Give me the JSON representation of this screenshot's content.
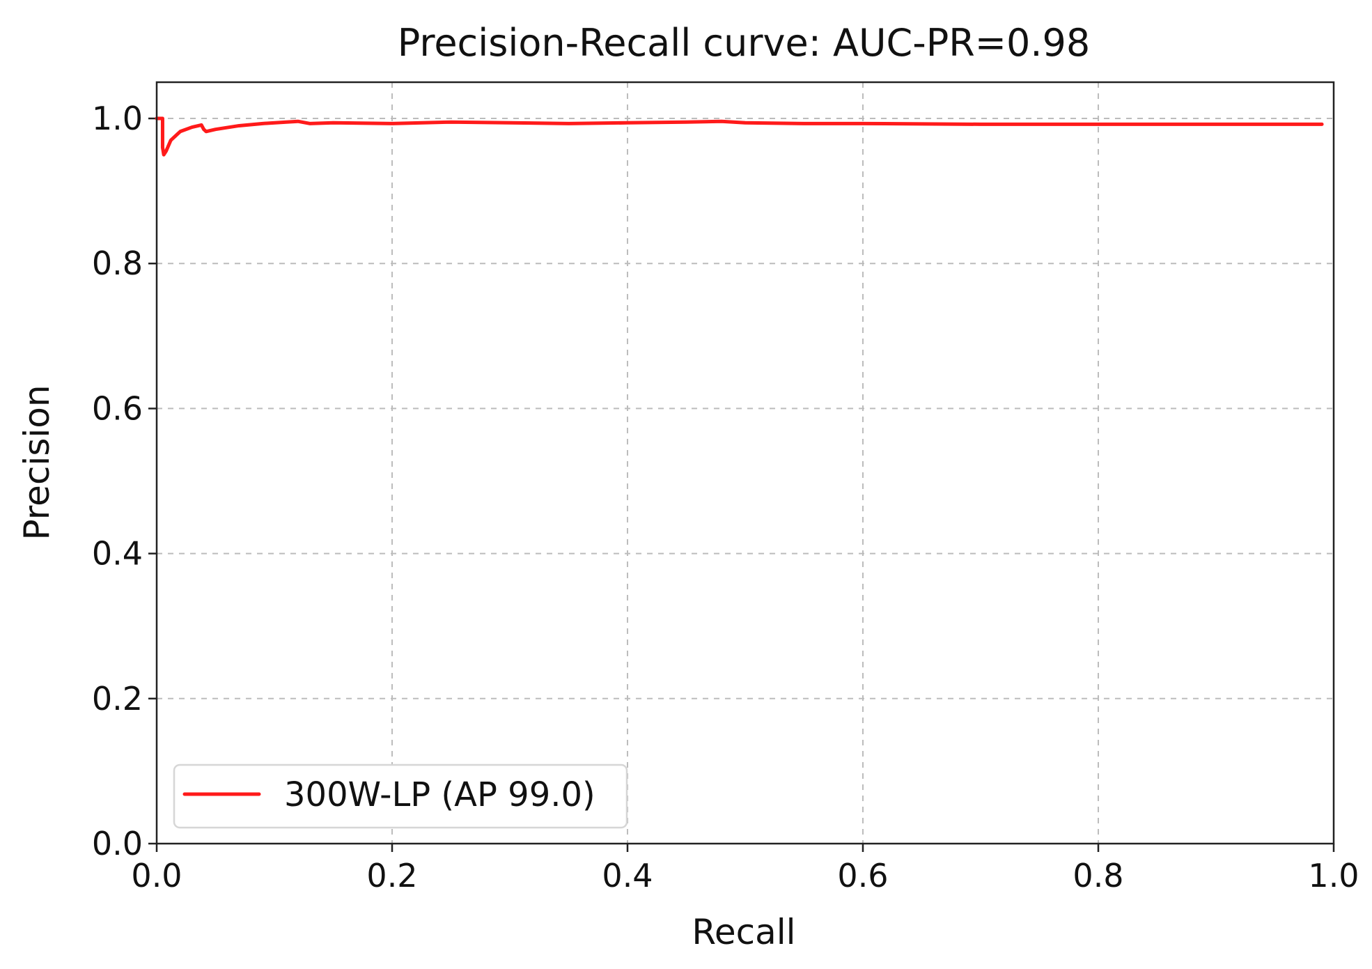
{
  "chart_data": {
    "type": "line",
    "title": "Precision-Recall curve: AUC-PR=0.98",
    "xlabel": "Recall",
    "ylabel": "Precision",
    "xlim": [
      0.0,
      1.0
    ],
    "ylim": [
      0.0,
      1.05
    ],
    "xticks": [
      0.0,
      0.2,
      0.4,
      0.6,
      0.8,
      1.0
    ],
    "xtick_labels": [
      "0.0",
      "0.2",
      "0.4",
      "0.6",
      "0.8",
      "1.0"
    ],
    "yticks": [
      0.0,
      0.2,
      0.4,
      0.6,
      0.8,
      1.0
    ],
    "ytick_labels": [
      "0.0",
      "0.2",
      "0.4",
      "0.6",
      "0.8",
      "1.0"
    ],
    "grid": true,
    "legend_position": "lower-left",
    "series": [
      {
        "name": "300W-LP (AP 99.0)",
        "color": "#ff1a1a",
        "x": [
          0.0,
          0.005,
          0.005,
          0.006,
          0.008,
          0.012,
          0.02,
          0.03,
          0.038,
          0.04,
          0.042,
          0.05,
          0.07,
          0.09,
          0.11,
          0.12,
          0.13,
          0.15,
          0.2,
          0.25,
          0.3,
          0.35,
          0.4,
          0.45,
          0.48,
          0.5,
          0.55,
          0.6,
          0.7,
          0.8,
          0.9,
          0.99
        ],
        "y": [
          1.0,
          1.0,
          0.96,
          0.95,
          0.955,
          0.97,
          0.982,
          0.988,
          0.991,
          0.985,
          0.982,
          0.985,
          0.99,
          0.993,
          0.995,
          0.996,
          0.993,
          0.994,
          0.993,
          0.995,
          0.994,
          0.993,
          0.994,
          0.995,
          0.996,
          0.994,
          0.993,
          0.993,
          0.992,
          0.992,
          0.992,
          0.992
        ]
      }
    ]
  }
}
